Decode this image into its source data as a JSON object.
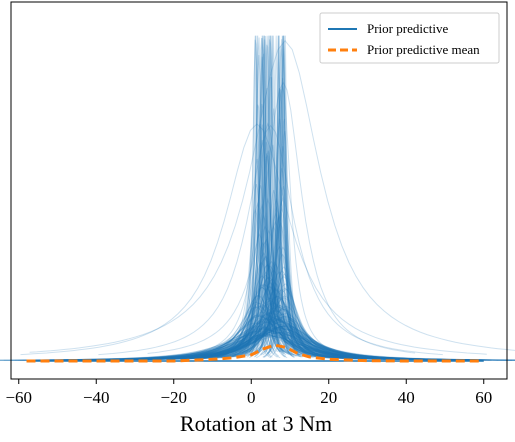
{
  "chart_data": {
    "type": "line",
    "title": "",
    "xlabel": "Rotation at 3 Nm",
    "ylabel": "",
    "xlim": [
      -62,
      66
    ],
    "ylim": [
      0,
      1
    ],
    "x_ticks": [
      -60,
      -40,
      -20,
      0,
      20,
      40,
      60
    ],
    "x_tick_labels": [
      "−60",
      "−40",
      "−20",
      "0",
      "20",
      "40",
      "60"
    ],
    "y_ticks_visible": false,
    "grid": false,
    "legend": {
      "placement": "top-right",
      "entries": [
        {
          "label": "Prior predictive",
          "style": "solid",
          "color": "#1f77b4"
        },
        {
          "label": "Prior predictive mean",
          "style": "dashed",
          "color": "#ff7f0e"
        }
      ]
    },
    "series": [
      {
        "name": "Prior predictive",
        "kind": "many_density_samples",
        "color": "#1f77b4",
        "sample_count": 250,
        "peak_location_range": [
          1,
          9
        ],
        "max_peak_height": 0.96
      },
      {
        "name": "Prior predictive mean",
        "color": "#ff7f0e",
        "x": [
          -58,
          -40,
          -20,
          -10,
          -5,
          0,
          3,
          6,
          9,
          12,
          15,
          20,
          30,
          40,
          60
        ],
        "y": [
          0.0,
          0.0,
          0.0,
          0.005,
          0.009,
          0.018,
          0.035,
          0.047,
          0.04,
          0.022,
          0.012,
          0.005,
          0.001,
          0.0,
          0.0
        ]
      }
    ]
  }
}
